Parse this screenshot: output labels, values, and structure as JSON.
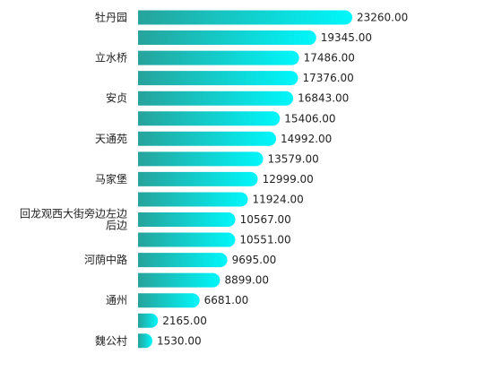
{
  "chart_data": {
    "type": "bar",
    "orientation": "horizontal",
    "categories": [
      "牡丹园",
      "",
      "立水桥",
      "",
      "安贞",
      "",
      "天通苑",
      "",
      "马家堡",
      "",
      "回龙观西大街旁边左边后边",
      "",
      "河荫中路",
      "",
      "通州",
      "",
      "魏公村"
    ],
    "values": [
      23260.0,
      19345.0,
      17486.0,
      17376.0,
      16843.0,
      15406.0,
      14992.0,
      13579.0,
      12999.0,
      11924.0,
      10567.0,
      10551.0,
      9695.0,
      8899.0,
      6681.0,
      2165.0,
      1530.0
    ],
    "value_labels": [
      "23260.00",
      "19345.00",
      "17486.00",
      "17376.00",
      "16843.00",
      "15406.00",
      "14992.00",
      "13579.00",
      "12999.00",
      "11924.00",
      "10567.00",
      "10551.00",
      "9695.00",
      "8899.00",
      "6681.00",
      "2165.00",
      "1530.00"
    ],
    "xlim": [
      0,
      23260
    ],
    "grid": false,
    "legend": "none",
    "colors": {
      "bar_start": "#26a39b",
      "bar_end": "#00f7fb",
      "label": "#222222"
    }
  }
}
